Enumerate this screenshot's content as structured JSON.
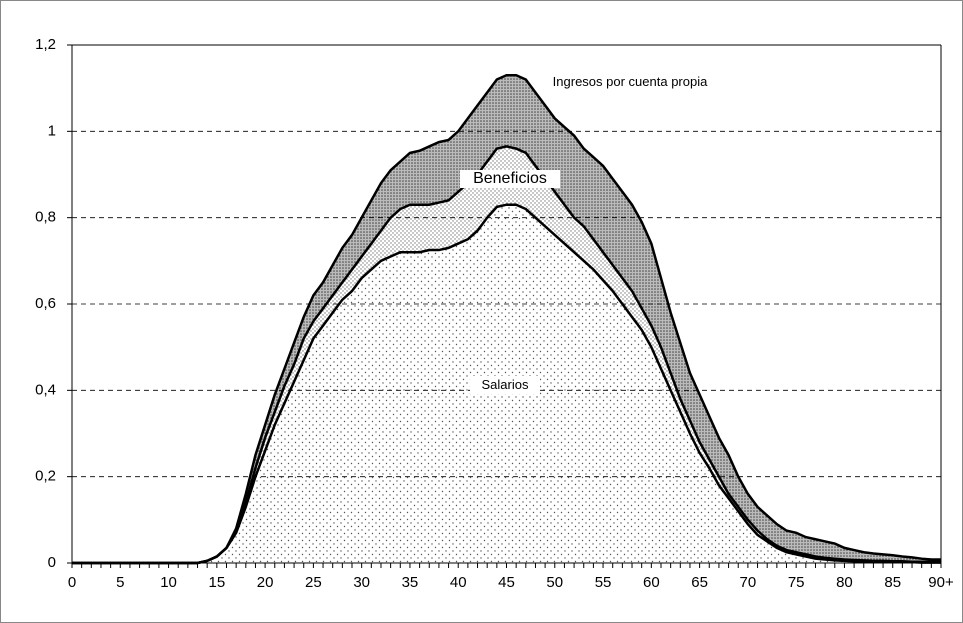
{
  "chart_data": {
    "type": "area",
    "categories": [
      "0",
      null,
      null,
      null,
      null,
      "5",
      null,
      null,
      null,
      null,
      "10",
      null,
      null,
      null,
      null,
      "15",
      null,
      null,
      null,
      null,
      "20",
      null,
      null,
      null,
      null,
      "25",
      null,
      null,
      null,
      null,
      "30",
      null,
      null,
      null,
      null,
      "35",
      null,
      null,
      null,
      null,
      "40",
      null,
      null,
      null,
      null,
      "45",
      null,
      null,
      null,
      null,
      "50",
      null,
      null,
      null,
      null,
      "55",
      null,
      null,
      null,
      null,
      "60",
      null,
      null,
      null,
      null,
      "65",
      null,
      null,
      null,
      null,
      "70",
      null,
      null,
      null,
      null,
      "75",
      null,
      null,
      null,
      null,
      "80",
      null,
      null,
      null,
      null,
      "85",
      null,
      null,
      null,
      null,
      "90+"
    ],
    "ylim": [
      0,
      1.2
    ],
    "yticks": [
      0,
      {
        "value": 0.2,
        "label": "0,2"
      },
      {
        "value": 0.4,
        "label": "0,4"
      },
      {
        "value": 0.6,
        "label": "0,6"
      },
      {
        "value": 0.8,
        "label": "0,8"
      },
      1,
      {
        "value": 1.2,
        "label": "1,2"
      }
    ],
    "grid": true,
    "series": [
      {
        "name": "Salarios",
        "color": "#555555",
        "values": [
          0,
          0,
          0,
          0,
          0,
          0,
          0,
          0,
          0,
          0,
          0,
          0,
          0,
          0,
          0.005,
          0.015,
          0.035,
          0.07,
          0.13,
          0.2,
          0.26,
          0.32,
          0.37,
          0.42,
          0.47,
          0.52,
          0.55,
          0.58,
          0.61,
          0.63,
          0.66,
          0.68,
          0.7,
          0.71,
          0.72,
          0.72,
          0.72,
          0.725,
          0.725,
          0.73,
          0.74,
          0.75,
          0.77,
          0.8,
          0.825,
          0.83,
          0.83,
          0.82,
          0.8,
          0.78,
          0.76,
          0.74,
          0.72,
          0.7,
          0.68,
          0.655,
          0.63,
          0.6,
          0.57,
          0.54,
          0.5,
          0.45,
          0.4,
          0.35,
          0.3,
          0.255,
          0.22,
          0.18,
          0.15,
          0.12,
          0.09,
          0.065,
          0.05,
          0.035,
          0.025,
          0.02,
          0.015,
          0.01,
          0.008,
          0.006,
          0.005,
          0.004,
          0.004,
          0.003,
          0.003,
          0.002,
          0.002,
          0.002,
          0.001,
          0.001,
          0.001
        ]
      },
      {
        "name": "Beneficios",
        "color": "#777777",
        "values": [
          0,
          0,
          0,
          0,
          0,
          0,
          0,
          0,
          0,
          0,
          0,
          0,
          0,
          0,
          0,
          0,
          0,
          0.005,
          0.01,
          0.02,
          0.03,
          0.03,
          0.04,
          0.04,
          0.05,
          0.04,
          0.04,
          0.04,
          0.04,
          0.05,
          0.05,
          0.06,
          0.07,
          0.09,
          0.1,
          0.11,
          0.11,
          0.105,
          0.11,
          0.11,
          0.12,
          0.13,
          0.13,
          0.13,
          0.135,
          0.135,
          0.13,
          0.13,
          0.12,
          0.11,
          0.1,
          0.09,
          0.08,
          0.08,
          0.07,
          0.065,
          0.06,
          0.06,
          0.06,
          0.05,
          0.05,
          0.05,
          0.04,
          0.03,
          0.03,
          0.025,
          0.02,
          0.02,
          0.01,
          0.01,
          0.01,
          0.01,
          0.005,
          0.005,
          0.005,
          0.005,
          0.005,
          0.005,
          0.004,
          0.004,
          0.003,
          0.003,
          0.002,
          0.002,
          0.002,
          0.002,
          0.002,
          0.001,
          0.002,
          0.002,
          0.002
        ]
      },
      {
        "name": "Ingresos por cuenta propia",
        "color": "#444444",
        "values": [
          0,
          0,
          0,
          0,
          0,
          0,
          0,
          0,
          0,
          0,
          0,
          0,
          0,
          0,
          0,
          0,
          0,
          0.005,
          0.02,
          0.03,
          0.03,
          0.04,
          0.04,
          0.05,
          0.05,
          0.06,
          0.06,
          0.07,
          0.08,
          0.08,
          0.09,
          0.1,
          0.11,
          0.11,
          0.11,
          0.12,
          0.125,
          0.135,
          0.14,
          0.14,
          0.14,
          0.15,
          0.16,
          0.16,
          0.16,
          0.165,
          0.17,
          0.17,
          0.17,
          0.17,
          0.17,
          0.18,
          0.19,
          0.18,
          0.19,
          0.2,
          0.2,
          0.2,
          0.2,
          0.2,
          0.19,
          0.16,
          0.14,
          0.13,
          0.11,
          0.11,
          0.1,
          0.09,
          0.09,
          0.07,
          0.06,
          0.055,
          0.055,
          0.05,
          0.045,
          0.045,
          0.04,
          0.04,
          0.038,
          0.035,
          0.027,
          0.023,
          0.019,
          0.017,
          0.015,
          0.014,
          0.011,
          0.01,
          0.007,
          0.005,
          0.005
        ]
      }
    ]
  }
}
